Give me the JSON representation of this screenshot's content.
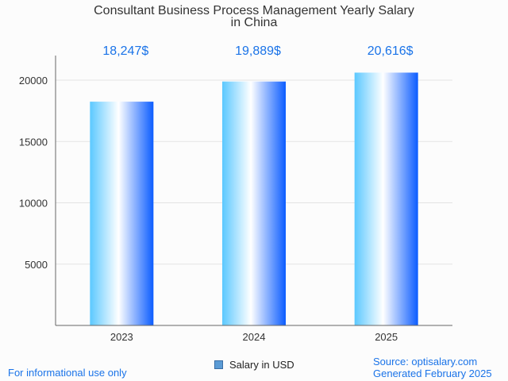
{
  "chart_data": {
    "type": "bar",
    "title_lines": [
      "Consultant Business Process Management Yearly Salary",
      "in China"
    ],
    "categories": [
      "2023",
      "2024",
      "2025"
    ],
    "series": [
      {
        "name": "Salary in USD",
        "values": [
          18247,
          19889,
          20616
        ]
      }
    ],
    "value_labels": [
      "18,247$",
      "19,889$",
      "20,616$"
    ],
    "yticks": [
      "5000",
      "10000",
      "15000",
      "20000"
    ],
    "ylim": [
      0,
      22000
    ],
    "grid": true,
    "legend_position": "bottom",
    "bar_gradient": [
      "#5bc8ff",
      "#ffffff",
      "#0b5cff"
    ]
  },
  "footer": {
    "left": "For informational use only",
    "source": "Source: optisalary.com",
    "generated": "Generated February 2025"
  }
}
